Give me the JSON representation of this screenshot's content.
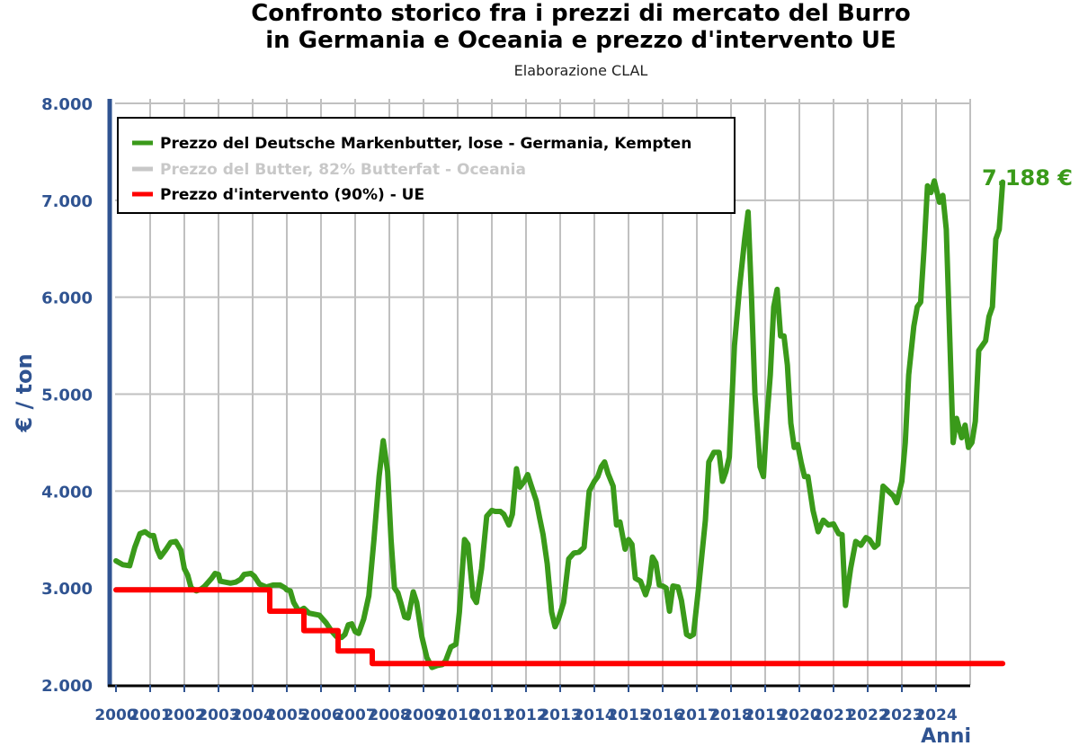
{
  "title_line1": "Confronto storico fra i prezzi di mercato del Burro",
  "title_line2": "in Germania e Oceania e prezzo d'intervento UE",
  "subtitle": "Elaborazione CLAL",
  "end_value_label": "7.188 €",
  "colors": {
    "germany": "#3a9a1a",
    "oceania": "#c8c8c8",
    "intervention": "#ff0000",
    "axis": "#2f5391",
    "grid": "#c0c0c0"
  },
  "chart_data": {
    "type": "line",
    "xlabel": "Anni",
    "ylabel": "€ / ton",
    "xlim": [
      2000,
      2025
    ],
    "ylim": [
      2000,
      8000
    ],
    "y_ticks": [
      2000,
      3000,
      4000,
      5000,
      6000,
      7000,
      8000
    ],
    "y_tick_labels": [
      "2.000",
      "3.000",
      "4.000",
      "5.000",
      "6.000",
      "7.000",
      "8.000"
    ],
    "x_tick_labels": [
      "2000",
      "2001",
      "2002",
      "2003",
      "2004",
      "2005",
      "2006",
      "2007",
      "2008",
      "2009",
      "2010",
      "2011",
      "2012",
      "2013",
      "2014",
      "2015",
      "2016",
      "2017",
      "2018",
      "2019",
      "2020",
      "2021",
      "2022",
      "2023",
      "2024"
    ],
    "grid": true,
    "legend_position": "top-left",
    "series": [
      {
        "name": "Prezzo del Deutsche Markenbutter, lose - Germania, Kempten",
        "color": "#3a9a1a",
        "visible": true,
        "points": [
          [
            2000.0,
            3280
          ],
          [
            2000.2,
            3240
          ],
          [
            2000.4,
            3230
          ],
          [
            2000.55,
            3420
          ],
          [
            2000.7,
            3560
          ],
          [
            2000.85,
            3580
          ],
          [
            2001.0,
            3540
          ],
          [
            2001.1,
            3540
          ],
          [
            2001.2,
            3400
          ],
          [
            2001.3,
            3320
          ],
          [
            2001.45,
            3390
          ],
          [
            2001.6,
            3470
          ],
          [
            2001.75,
            3480
          ],
          [
            2001.9,
            3390
          ],
          [
            2002.0,
            3200
          ],
          [
            2002.1,
            3130
          ],
          [
            2002.2,
            3000
          ],
          [
            2002.35,
            2970
          ],
          [
            2002.5,
            2990
          ],
          [
            2002.6,
            3020
          ],
          [
            2002.8,
            3100
          ],
          [
            2002.9,
            3150
          ],
          [
            2003.0,
            3140
          ],
          [
            2003.05,
            3070
          ],
          [
            2003.2,
            3060
          ],
          [
            2003.35,
            3050
          ],
          [
            2003.5,
            3060
          ],
          [
            2003.65,
            3090
          ],
          [
            2003.75,
            3140
          ],
          [
            2003.95,
            3150
          ],
          [
            2004.05,
            3120
          ],
          [
            2004.2,
            3040
          ],
          [
            2004.4,
            3010
          ],
          [
            2004.6,
            3030
          ],
          [
            2004.8,
            3030
          ],
          [
            2004.95,
            3000
          ],
          [
            2005.0,
            2980
          ],
          [
            2005.1,
            2970
          ],
          [
            2005.2,
            2850
          ],
          [
            2005.35,
            2760
          ],
          [
            2005.5,
            2790
          ],
          [
            2005.65,
            2740
          ],
          [
            2005.8,
            2730
          ],
          [
            2005.95,
            2720
          ],
          [
            2006.05,
            2680
          ],
          [
            2006.15,
            2640
          ],
          [
            2006.3,
            2560
          ],
          [
            2006.45,
            2500
          ],
          [
            2006.6,
            2490
          ],
          [
            2006.7,
            2520
          ],
          [
            2006.8,
            2620
          ],
          [
            2006.9,
            2630
          ],
          [
            2007.0,
            2550
          ],
          [
            2007.1,
            2530
          ],
          [
            2007.25,
            2680
          ],
          [
            2007.4,
            2920
          ],
          [
            2007.55,
            3500
          ],
          [
            2007.7,
            4150
          ],
          [
            2007.82,
            4520
          ],
          [
            2007.95,
            4200
          ],
          [
            2008.05,
            3500
          ],
          [
            2008.15,
            3000
          ],
          [
            2008.25,
            2950
          ],
          [
            2008.35,
            2830
          ],
          [
            2008.45,
            2700
          ],
          [
            2008.55,
            2690
          ],
          [
            2008.7,
            2960
          ],
          [
            2008.8,
            2850
          ],
          [
            2008.95,
            2500
          ],
          [
            2009.1,
            2280
          ],
          [
            2009.25,
            2180
          ],
          [
            2009.4,
            2200
          ],
          [
            2009.55,
            2210
          ],
          [
            2009.65,
            2250
          ],
          [
            2009.8,
            2390
          ],
          [
            2009.95,
            2420
          ],
          [
            2010.05,
            2750
          ],
          [
            2010.2,
            3500
          ],
          [
            2010.3,
            3450
          ],
          [
            2010.45,
            2910
          ],
          [
            2010.55,
            2850
          ],
          [
            2010.7,
            3200
          ],
          [
            2010.85,
            3740
          ],
          [
            2011.0,
            3800
          ],
          [
            2011.1,
            3790
          ],
          [
            2011.25,
            3790
          ],
          [
            2011.35,
            3760
          ],
          [
            2011.5,
            3650
          ],
          [
            2011.6,
            3760
          ],
          [
            2011.72,
            4230
          ],
          [
            2011.82,
            4040
          ],
          [
            2011.95,
            4100
          ],
          [
            2012.05,
            4170
          ],
          [
            2012.15,
            4060
          ],
          [
            2012.3,
            3900
          ],
          [
            2012.4,
            3720
          ],
          [
            2012.5,
            3550
          ],
          [
            2012.62,
            3250
          ],
          [
            2012.75,
            2750
          ],
          [
            2012.85,
            2600
          ],
          [
            2012.95,
            2680
          ],
          [
            2013.1,
            2850
          ],
          [
            2013.25,
            3300
          ],
          [
            2013.4,
            3360
          ],
          [
            2013.55,
            3370
          ],
          [
            2013.7,
            3420
          ],
          [
            2013.85,
            4000
          ],
          [
            2014.0,
            4100
          ],
          [
            2014.1,
            4150
          ],
          [
            2014.2,
            4250
          ],
          [
            2014.3,
            4300
          ],
          [
            2014.4,
            4180
          ],
          [
            2014.55,
            4050
          ],
          [
            2014.65,
            3650
          ],
          [
            2014.75,
            3680
          ],
          [
            2014.9,
            3400
          ],
          [
            2015.0,
            3500
          ],
          [
            2015.1,
            3450
          ],
          [
            2015.2,
            3100
          ],
          [
            2015.35,
            3070
          ],
          [
            2015.5,
            2930
          ],
          [
            2015.6,
            3040
          ],
          [
            2015.7,
            3320
          ],
          [
            2015.8,
            3260
          ],
          [
            2015.9,
            3030
          ],
          [
            2016.0,
            3020
          ],
          [
            2016.1,
            3000
          ],
          [
            2016.2,
            2760
          ],
          [
            2016.3,
            3020
          ],
          [
            2016.45,
            3010
          ],
          [
            2016.55,
            2870
          ],
          [
            2016.7,
            2520
          ],
          [
            2016.8,
            2500
          ],
          [
            2016.9,
            2520
          ],
          [
            2017.05,
            3000
          ],
          [
            2017.25,
            3700
          ],
          [
            2017.35,
            4300
          ],
          [
            2017.5,
            4400
          ],
          [
            2017.65,
            4400
          ],
          [
            2017.75,
            4100
          ],
          [
            2017.85,
            4200
          ],
          [
            2017.95,
            4350
          ],
          [
            2018.1,
            5500
          ],
          [
            2018.25,
            6100
          ],
          [
            2018.4,
            6600
          ],
          [
            2018.5,
            6880
          ],
          [
            2018.6,
            6000
          ],
          [
            2018.7,
            5000
          ],
          [
            2018.85,
            4250
          ],
          [
            2018.95,
            4150
          ],
          [
            2019.05,
            4750
          ],
          [
            2019.15,
            5200
          ],
          [
            2019.25,
            5900
          ],
          [
            2019.35,
            6080
          ],
          [
            2019.45,
            5600
          ],
          [
            2019.55,
            5600
          ],
          [
            2019.65,
            5300
          ],
          [
            2019.75,
            4700
          ],
          [
            2019.85,
            4450
          ],
          [
            2019.95,
            4480
          ],
          [
            2020.05,
            4300
          ],
          [
            2020.15,
            4150
          ],
          [
            2020.25,
            4150
          ],
          [
            2020.4,
            3800
          ],
          [
            2020.55,
            3580
          ],
          [
            2020.7,
            3700
          ],
          [
            2020.85,
            3650
          ],
          [
            2021.0,
            3660
          ],
          [
            2021.15,
            3560
          ],
          [
            2021.25,
            3550
          ],
          [
            2021.35,
            2820
          ],
          [
            2021.5,
            3200
          ],
          [
            2021.65,
            3480
          ],
          [
            2021.8,
            3440
          ],
          [
            2021.95,
            3520
          ],
          [
            2022.05,
            3500
          ],
          [
            2022.2,
            3420
          ],
          [
            2022.3,
            3450
          ],
          [
            2022.45,
            4050
          ],
          [
            2022.6,
            4000
          ],
          [
            2022.75,
            3950
          ],
          [
            2022.85,
            3880
          ],
          [
            2023.0,
            4100
          ],
          [
            2023.1,
            4500
          ],
          [
            2023.2,
            5200
          ],
          [
            2023.35,
            5700
          ],
          [
            2023.45,
            5900
          ],
          [
            2023.55,
            5950
          ],
          [
            2023.65,
            6500
          ],
          [
            2023.75,
            7150
          ],
          [
            2023.85,
            7080
          ],
          [
            2023.95,
            7200
          ],
          [
            2024.1,
            6980
          ],
          [
            2024.2,
            7050
          ],
          [
            2024.3,
            6700
          ],
          [
            2024.4,
            5600
          ],
          [
            2024.5,
            4500
          ],
          [
            2024.6,
            4750
          ],
          [
            2024.75,
            4550
          ],
          [
            2024.85,
            4680
          ],
          [
            2024.95,
            4450
          ],
          [
            2025.05,
            4500
          ],
          [
            2025.15,
            4720
          ],
          [
            2025.25,
            5450
          ],
          [
            2025.35,
            5500
          ],
          [
            2025.45,
            5550
          ],
          [
            2025.55,
            5800
          ],
          [
            2025.65,
            5900
          ],
          [
            2025.75,
            6600
          ],
          [
            2025.85,
            6700
          ],
          [
            2025.95,
            7188
          ]
        ]
      },
      {
        "name": "Prezzo del Butter, 82% Butterfat - Oceania",
        "color": "#c8c8c8",
        "visible": false,
        "points": []
      },
      {
        "name": "Prezzo d'intervento (90%) - UE",
        "color": "#ff0000",
        "visible": true,
        "points": [
          [
            2000.0,
            2980
          ],
          [
            2004.5,
            2980
          ],
          [
            2004.5,
            2760
          ],
          [
            2005.5,
            2760
          ],
          [
            2005.5,
            2560
          ],
          [
            2006.5,
            2560
          ],
          [
            2006.5,
            2350
          ],
          [
            2007.5,
            2350
          ],
          [
            2007.5,
            2220
          ],
          [
            2025.95,
            2220
          ]
        ]
      }
    ]
  }
}
